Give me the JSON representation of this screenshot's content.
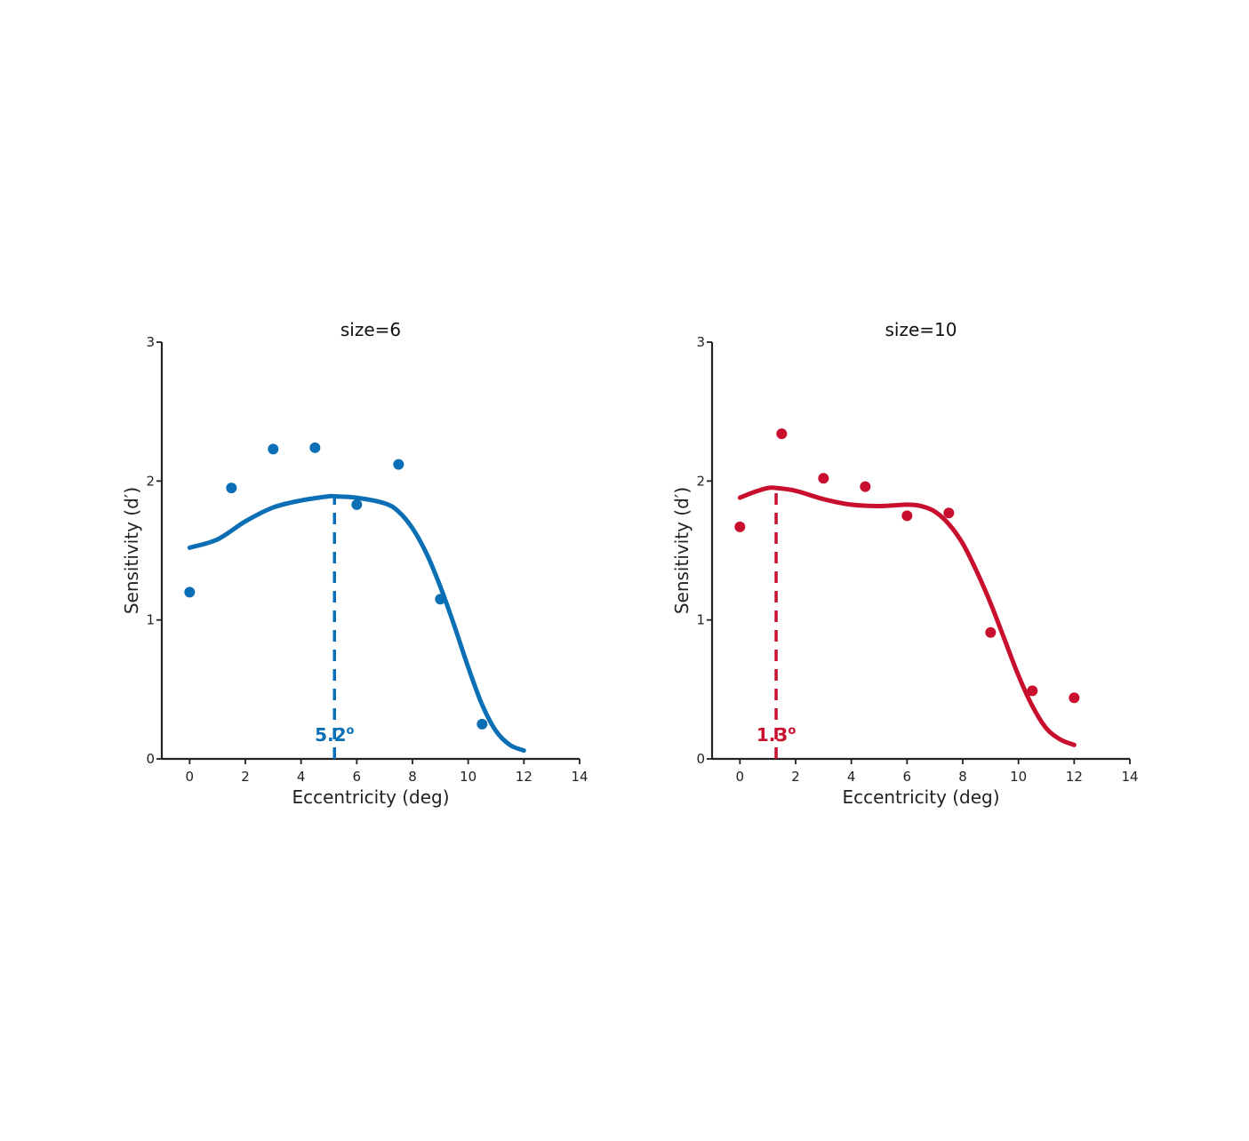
{
  "chart_data": [
    {
      "type": "scatter",
      "title": "size=6",
      "xlabel": "Eccentricity (deg)",
      "ylabel": "Sensitivity (d′)",
      "xlim": [
        -1,
        14
      ],
      "ylim": [
        0,
        3
      ],
      "xticks": [
        "0",
        "2",
        "4",
        "6",
        "8",
        "10",
        "12",
        "14"
      ],
      "yticks": [
        "0",
        "1",
        "2",
        "3"
      ],
      "color": "#0a6fb5",
      "grid": false,
      "points": {
        "x": [
          0,
          1.5,
          3,
          4.5,
          6,
          7.5,
          9,
          10.5
        ],
        "y": [
          1.2,
          1.95,
          2.23,
          2.24,
          1.83,
          2.12,
          1.15,
          0.25
        ]
      },
      "fit": {
        "x": [
          0,
          1,
          2,
          3,
          4,
          5,
          5.2,
          6,
          7,
          7.5,
          8,
          8.5,
          9,
          9.5,
          10,
          10.5,
          11,
          11.5,
          12
        ],
        "y": [
          1.52,
          1.58,
          1.71,
          1.81,
          1.86,
          1.89,
          1.89,
          1.88,
          1.84,
          1.78,
          1.66,
          1.48,
          1.24,
          0.96,
          0.66,
          0.39,
          0.2,
          0.1,
          0.06
        ]
      },
      "peak": {
        "x": 5.2,
        "y": 1.89,
        "label": "5.2",
        "degree_symbol": "o"
      }
    },
    {
      "type": "scatter",
      "title": "size=10",
      "xlabel": "Eccentricity (deg)",
      "ylabel": "Sensitivity (d′)",
      "xlim": [
        -1,
        14
      ],
      "ylim": [
        0,
        3
      ],
      "xticks": [
        "0",
        "2",
        "4",
        "6",
        "8",
        "10",
        "12",
        "14"
      ],
      "yticks": [
        "0",
        "1",
        "2",
        "3"
      ],
      "color": "#c8102e",
      "grid": false,
      "points": {
        "x": [
          0,
          1.5,
          3,
          4.5,
          6,
          7.5,
          9,
          10.5,
          12
        ],
        "y": [
          1.67,
          2.34,
          2.02,
          1.96,
          1.75,
          1.77,
          0.91,
          0.49,
          0.44
        ]
      },
      "fit": {
        "x": [
          0,
          0.5,
          1,
          1.3,
          2,
          3,
          4,
          5,
          6,
          6.5,
          7,
          7.5,
          8,
          8.5,
          9,
          9.5,
          10,
          10.5,
          11,
          11.5,
          12
        ],
        "y": [
          1.88,
          1.92,
          1.95,
          1.95,
          1.93,
          1.87,
          1.83,
          1.82,
          1.83,
          1.82,
          1.78,
          1.69,
          1.55,
          1.35,
          1.12,
          0.86,
          0.6,
          0.38,
          0.22,
          0.14,
          0.1
        ]
      },
      "peak": {
        "x": 1.3,
        "y": 1.95,
        "label": "1.3",
        "degree_symbol": "o"
      }
    }
  ]
}
